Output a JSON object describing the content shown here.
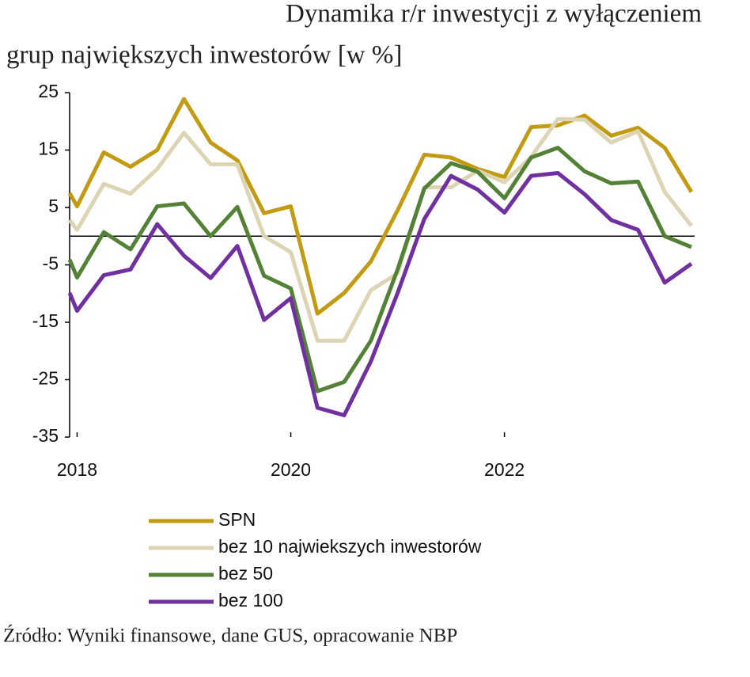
{
  "chart_data": {
    "type": "line",
    "title": [
      "Dynamika r/r inwestycji z wyłączeniem",
      "grup największych inwestorów [w %]"
    ],
    "source": "Źródło: Wyniki finansowe, dane GUS, opracowanie NBP",
    "x": [
      2017.93,
      2018,
      2018.25,
      2018.5,
      2018.75,
      2019,
      2019.25,
      2019.5,
      2019.75,
      2020,
      2020.25,
      2020.5,
      2020.75,
      2021,
      2021.25,
      2021.5,
      2021.75,
      2022,
      2022.25,
      2022.5,
      2022.75,
      2023,
      2023.25,
      2023.5,
      2023.75
    ],
    "series": [
      {
        "name": "SPN",
        "color": "#c39b13",
        "values": [
          7.5,
          5.2,
          14.6,
          12.1,
          15,
          23.9,
          16.3,
          13.2,
          4,
          5.2,
          -13.5,
          -9.9,
          -4.4,
          4.5,
          14.2,
          13.7,
          11.7,
          10.3,
          19,
          19.3,
          21,
          17.5,
          18.9,
          15.4,
          7.7
        ]
      },
      {
        "name": "bez 10 najwiekszych inwestorów",
        "color": "#ddd4b4",
        "values": [
          2.8,
          1.1,
          9.1,
          7.4,
          11.7,
          18,
          12.5,
          12.5,
          0,
          -2.8,
          -18.2,
          -18.2,
          -9.4,
          -6.5,
          8.5,
          8.5,
          11.4,
          9.4,
          13.8,
          20.4,
          20.3,
          16.3,
          18.3,
          7.7,
          1.8
        ]
      },
      {
        "name": "bez 50",
        "color": "#538135",
        "values": [
          -4.1,
          -7.2,
          0.7,
          -2.3,
          5.2,
          5.7,
          0,
          5.1,
          -6.9,
          -9.1,
          -27,
          -25.4,
          -18.2,
          -5.8,
          8.3,
          12.7,
          11.2,
          6.6,
          13.7,
          15.4,
          11.3,
          9.2,
          9.5,
          0,
          -1.9
        ]
      },
      {
        "name": "bez 100",
        "color": "#7030a0",
        "values": [
          -9.9,
          -13,
          -6.8,
          -5.8,
          2.1,
          -3.4,
          -7.3,
          -1.7,
          -14.6,
          -10.8,
          -29.9,
          -31.2,
          -21.8,
          -9.9,
          3,
          10.5,
          8.1,
          4.1,
          10.5,
          11,
          7.3,
          2.8,
          1.1,
          -8.1,
          -4.8
        ]
      }
    ],
    "xlim": [
      2017.93,
      2023.78
    ],
    "xticks": [
      2018,
      2020,
      2022
    ],
    "ylim": [
      -35,
      25
    ],
    "yticks": [
      -35,
      -25,
      -15,
      -5,
      5,
      15,
      25
    ],
    "grid": false
  }
}
